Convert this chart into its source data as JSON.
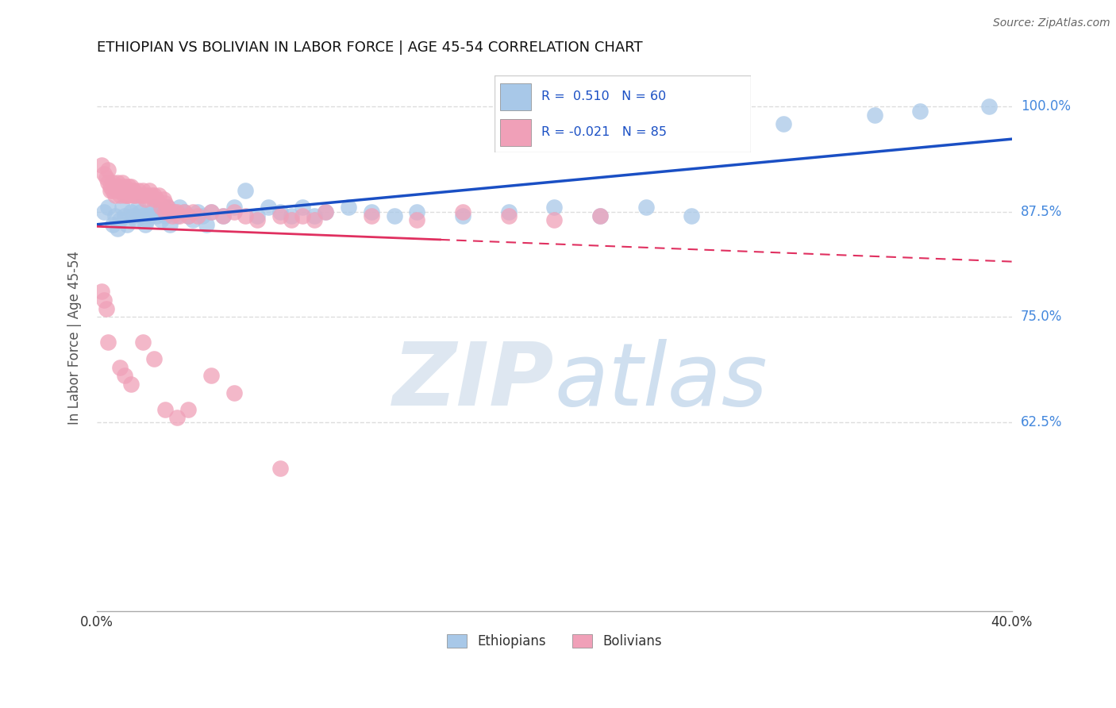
{
  "title": "ETHIOPIAN VS BOLIVIAN IN LABOR FORCE | AGE 45-54 CORRELATION CHART",
  "source": "Source: ZipAtlas.com",
  "ylabel": "In Labor Force | Age 45-54",
  "xlim": [
    0.0,
    0.4
  ],
  "ylim": [
    0.4,
    1.05
  ],
  "xticks": [
    0.0,
    0.05,
    0.1,
    0.15,
    0.2,
    0.25,
    0.3,
    0.35,
    0.4
  ],
  "xticklabels": [
    "0.0%",
    "",
    "",
    "",
    "",
    "",
    "",
    "",
    "40.0%"
  ],
  "yticks": [
    0.625,
    0.75,
    0.875,
    1.0
  ],
  "yticklabels": [
    "62.5%",
    "75.0%",
    "87.5%",
    "100.0%"
  ],
  "legend_label1": "Ethiopians",
  "legend_label2": "Bolivians",
  "blue_color": "#a8c8e8",
  "pink_color": "#f0a0b8",
  "blue_line_color": "#1a4fc4",
  "pink_line_color": "#e03060",
  "blue_R": 0.51,
  "blue_N": 60,
  "pink_R": -0.021,
  "pink_N": 85,
  "blue_scatter_x": [
    0.003,
    0.005,
    0.007,
    0.008,
    0.009,
    0.01,
    0.011,
    0.012,
    0.013,
    0.015,
    0.016,
    0.017,
    0.018,
    0.019,
    0.02,
    0.021,
    0.022,
    0.023,
    0.024,
    0.025,
    0.026,
    0.027,
    0.028,
    0.03,
    0.031,
    0.032,
    0.033,
    0.035,
    0.036,
    0.038,
    0.04,
    0.042,
    0.044,
    0.046,
    0.048,
    0.05,
    0.055,
    0.06,
    0.065,
    0.07,
    0.075,
    0.08,
    0.085,
    0.09,
    0.095,
    0.1,
    0.11,
    0.12,
    0.13,
    0.14,
    0.16,
    0.18,
    0.2,
    0.22,
    0.24,
    0.26,
    0.3,
    0.34,
    0.36,
    0.39
  ],
  "blue_scatter_y": [
    0.875,
    0.88,
    0.86,
    0.87,
    0.855,
    0.865,
    0.88,
    0.87,
    0.86,
    0.875,
    0.87,
    0.865,
    0.88,
    0.875,
    0.87,
    0.86,
    0.865,
    0.87,
    0.875,
    0.88,
    0.87,
    0.875,
    0.865,
    0.87,
    0.88,
    0.86,
    0.875,
    0.87,
    0.88,
    0.875,
    0.87,
    0.865,
    0.875,
    0.87,
    0.86,
    0.875,
    0.87,
    0.88,
    0.9,
    0.87,
    0.88,
    0.875,
    0.87,
    0.88,
    0.87,
    0.875,
    0.88,
    0.875,
    0.87,
    0.875,
    0.87,
    0.875,
    0.88,
    0.87,
    0.88,
    0.87,
    0.98,
    0.99,
    0.995,
    1.0
  ],
  "pink_scatter_x": [
    0.002,
    0.003,
    0.004,
    0.005,
    0.005,
    0.006,
    0.006,
    0.007,
    0.007,
    0.008,
    0.008,
    0.009,
    0.009,
    0.01,
    0.01,
    0.011,
    0.011,
    0.012,
    0.012,
    0.013,
    0.013,
    0.014,
    0.014,
    0.015,
    0.015,
    0.016,
    0.016,
    0.017,
    0.018,
    0.019,
    0.02,
    0.02,
    0.021,
    0.022,
    0.023,
    0.024,
    0.025,
    0.025,
    0.026,
    0.027,
    0.028,
    0.029,
    0.03,
    0.03,
    0.031,
    0.032,
    0.033,
    0.034,
    0.035,
    0.036,
    0.038,
    0.04,
    0.042,
    0.044,
    0.05,
    0.055,
    0.06,
    0.065,
    0.07,
    0.08,
    0.085,
    0.09,
    0.095,
    0.1,
    0.12,
    0.14,
    0.16,
    0.18,
    0.2,
    0.22,
    0.002,
    0.003,
    0.004,
    0.005,
    0.01,
    0.012,
    0.015,
    0.02,
    0.025,
    0.03,
    0.035,
    0.04,
    0.05,
    0.06,
    0.08
  ],
  "pink_scatter_y": [
    0.93,
    0.92,
    0.915,
    0.925,
    0.91,
    0.9,
    0.905,
    0.91,
    0.9,
    0.905,
    0.895,
    0.9,
    0.91,
    0.895,
    0.905,
    0.9,
    0.91,
    0.895,
    0.905,
    0.9,
    0.895,
    0.905,
    0.895,
    0.9,
    0.905,
    0.895,
    0.9,
    0.895,
    0.9,
    0.895,
    0.9,
    0.895,
    0.89,
    0.895,
    0.9,
    0.895,
    0.89,
    0.895,
    0.89,
    0.895,
    0.88,
    0.89,
    0.885,
    0.875,
    0.88,
    0.875,
    0.87,
    0.875,
    0.875,
    0.87,
    0.875,
    0.87,
    0.875,
    0.87,
    0.875,
    0.87,
    0.875,
    0.87,
    0.865,
    0.87,
    0.865,
    0.87,
    0.865,
    0.875,
    0.87,
    0.865,
    0.875,
    0.87,
    0.865,
    0.87,
    0.78,
    0.77,
    0.76,
    0.72,
    0.69,
    0.68,
    0.67,
    0.72,
    0.7,
    0.64,
    0.63,
    0.64,
    0.68,
    0.66,
    0.57
  ],
  "watermark_zip": "ZIP",
  "watermark_atlas": "atlas",
  "background_color": "#ffffff",
  "grid_color": "#cccccc"
}
